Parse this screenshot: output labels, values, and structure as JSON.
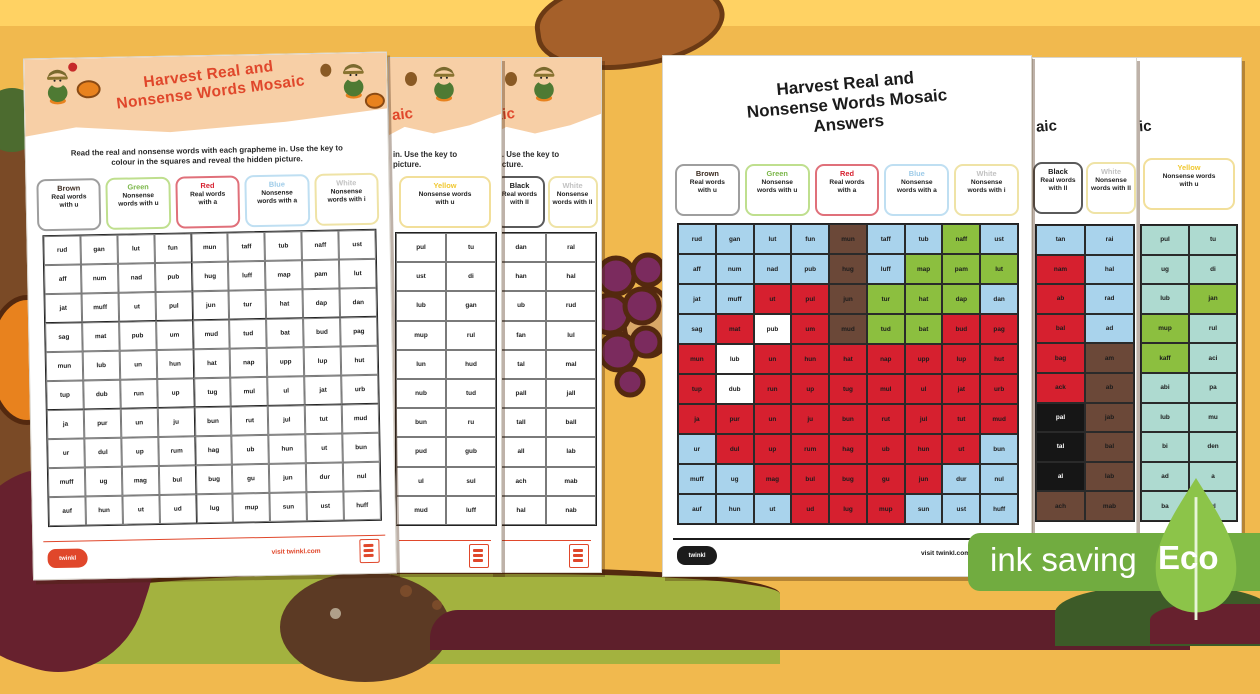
{
  "background": {
    "base": "#F1B94E",
    "top_band": "#FFD263",
    "post_tan": "#C6933F",
    "post_dark": "#7A4A26",
    "outline_brown": "#54290F",
    "pumpkin_orange": "#E8821E",
    "grape_purple": "#7B2B5E",
    "leaf_tan": "#D9A868",
    "olive_green": "#A3B23F",
    "maroon": "#67212E",
    "dark_green": "#3D5B28",
    "soil_brown": "#5C3A24",
    "leaf_brown": "#A5602A"
  },
  "badge": {
    "label": "ink saving",
    "eco": "Eco",
    "bar_color": "#71AC40",
    "leaf_color": "#8CC449",
    "text_color": "#FFFFFF"
  },
  "worksheet": {
    "title": [
      "Harvest Real and",
      "Nonsense Words Mosaic"
    ],
    "title_color": "#E0472B",
    "instructions": [
      "Read the real and nonsense words with each grapheme in. Use the key to",
      "colour in the squares and reveal the hidden picture."
    ],
    "key": [
      {
        "label": "Brown",
        "label_color": "#3B2B20",
        "border": "#9E9E9E",
        "lines": [
          "Real words",
          "with u"
        ]
      },
      {
        "label": "Green",
        "label_color": "#7AB648",
        "border": "#BFDF8E",
        "lines": [
          "Nonsense",
          "words with u"
        ]
      },
      {
        "label": "Red",
        "label_color": "#D6202F",
        "border": "#E0707A",
        "lines": [
          "Real words",
          "with a"
        ]
      },
      {
        "label": "Blue",
        "label_color": "#9DCBE8",
        "border": "#BFDFF2",
        "lines": [
          "Nonsense",
          "words with a"
        ]
      },
      {
        "label": "White",
        "label_color": "#C2C2C2",
        "border": "#EFE3A6",
        "lines": [
          "Nonsense",
          "words with i"
        ]
      }
    ],
    "grid": {
      "cols": 9,
      "rows": 10,
      "words": [
        "rud",
        "gan",
        "lut",
        "fun",
        "mun",
        "taff",
        "tub",
        "naff",
        "ust",
        "aff",
        "num",
        "nad",
        "pub",
        "hug",
        "luff",
        "map",
        "pam",
        "lut",
        "jat",
        "muff",
        "ut",
        "pul",
        "jun",
        "tur",
        "hat",
        "dap",
        "dan",
        "sag",
        "mat",
        "pub",
        "um",
        "mud",
        "tud",
        "bat",
        "bud",
        "pag",
        "mun",
        "lub",
        "un",
        "hun",
        "hat",
        "nap",
        "upp",
        "lup",
        "hut",
        "tup",
        "dub",
        "run",
        "up",
        "tug",
        "mul",
        "ul",
        "jat",
        "urb",
        "ja",
        "pur",
        "un",
        "ju",
        "bun",
        "rut",
        "jul",
        "tut",
        "mud",
        "ur",
        "dul",
        "up",
        "rum",
        "hag",
        "ub",
        "hun",
        "ut",
        "bun",
        "muff",
        "ug",
        "mag",
        "bul",
        "bug",
        "gu",
        "jun",
        "dur",
        "nul",
        "auf",
        "hun",
        "ut",
        "ud",
        "lug",
        "mup",
        "sun",
        "ust",
        "huff"
      ]
    },
    "footer": {
      "brand": "twinkl",
      "link": "visit twinkl.com"
    }
  },
  "answers": {
    "title": [
      "Harvest Real and",
      "Nonsense Words Mosaic",
      "Answers"
    ],
    "palette": {
      "B": "#A9D3EC",
      "R": "#D6202F",
      "N": "#6B4838",
      "G": "#8CBF3F",
      "W": "#FFFFFF",
      "K": "#161616",
      "T": "#AEDAD0"
    },
    "map": [
      "BBBBNBBGB",
      "BBBBNBGGG",
      "BBRRNGGGB",
      "BRWRNGGRR",
      "RWRRRRRRR",
      "RWRRRRRRR",
      "RRRRRRRRR",
      "BRRRRRRRB",
      "BBRRRRRBB",
      "BBBRRRBBB"
    ]
  },
  "left_strips": [
    {
      "title_fragment": "aic",
      "instr_fragments": [
        "in. Use the key to",
        "picture."
      ],
      "keys": [
        {
          "label": "Yellow",
          "label_color": "#F0C830",
          "border": "#F2DF9A",
          "lines": [
            "Nonsense words",
            "with u"
          ]
        }
      ],
      "words": [
        "pul",
        "tu",
        "ust",
        "di",
        "lub",
        "gan",
        "mup",
        "rul",
        "lun",
        "hud",
        "nub",
        "tud",
        "bun",
        "ru",
        "pud",
        "gub",
        "ul",
        "sul",
        "mud",
        "luff"
      ]
    },
    {
      "title_fragment": "aic",
      "instr_fragments": [
        "in. Use the key to",
        "picture."
      ],
      "keys": [
        {
          "label": "Black",
          "label_color": "#1b1b1b",
          "border": "#5a5a5a",
          "lines": [
            "Real words",
            "with ll"
          ]
        },
        {
          "label": "White",
          "label_color": "#C2C2C2",
          "border": "#EFE3A6",
          "lines": [
            "Nonsense",
            "words with ll"
          ]
        }
      ],
      "words": [
        "dan",
        "ral",
        "han",
        "hal",
        "ub",
        "rud",
        "fan",
        "lul",
        "tal",
        "mal",
        "pall",
        "jall",
        "tall",
        "ball",
        "all",
        "lab",
        "ach",
        "mab",
        "hal",
        "nab"
      ]
    }
  ],
  "right_strips": [
    {
      "title_fragment": "aic",
      "keys": [
        {
          "label": "Black",
          "label_color": "#1b1b1b",
          "border": "#5a5a5a",
          "lines": [
            "Real words",
            "with ll"
          ]
        },
        {
          "label": "White",
          "label_color": "#C2C2C2",
          "border": "#EFE3A6",
          "lines": [
            "Nonsense",
            "words with ll"
          ]
        }
      ],
      "map": [
        "BB",
        "RB",
        "RB",
        "RB",
        "RN",
        "RN",
        "KN",
        "KN",
        "KN",
        "NN"
      ],
      "words": [
        "tan",
        "rai",
        "nam",
        "hal",
        "ab",
        "rad",
        "bal",
        "ad",
        "bag",
        "am",
        "ack",
        "ab",
        "pal",
        "jab",
        "tal",
        "bal",
        "al",
        "lab",
        "ach",
        "mab"
      ]
    },
    {
      "title_fragment": "ic",
      "keys": [
        {
          "label": "Yellow",
          "label_color": "#F0C830",
          "border": "#F2DF9A",
          "lines": [
            "Nonsense words",
            "with u"
          ]
        }
      ],
      "map": [
        "TT",
        "TT",
        "TG",
        "GT",
        "GT",
        "TT",
        "TT",
        "TT",
        "TT",
        "TT"
      ],
      "words": [
        "pul",
        "tu",
        "ug",
        "di",
        "lub",
        "jan",
        "mup",
        "rul",
        "kaff",
        "aci",
        "abi",
        "pa",
        "lub",
        "mu",
        "bi",
        "den",
        "ad",
        "a",
        "ba",
        "ul"
      ]
    }
  ]
}
